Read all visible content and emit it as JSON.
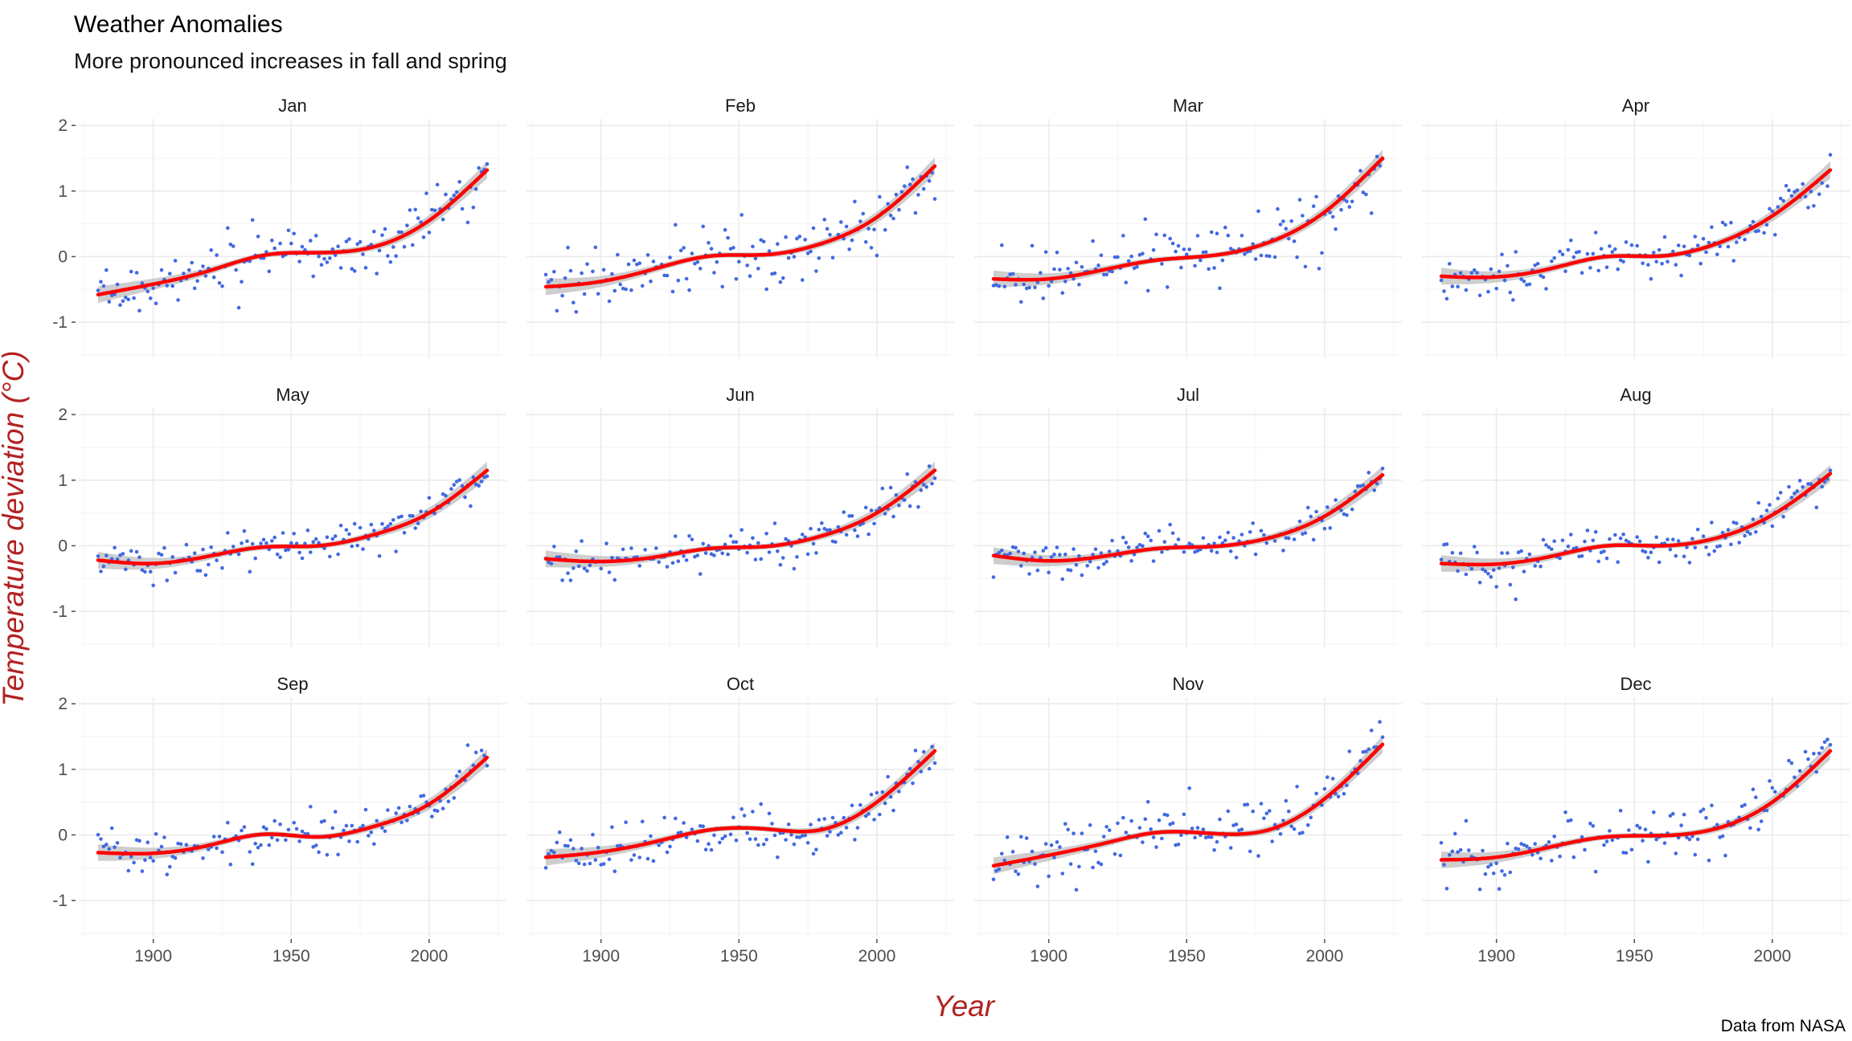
{
  "chart_data": {
    "type": "scatter",
    "title": "Weather Anomalies",
    "subtitle": "More pronounced increases in fall and spring",
    "xlabel": "Year",
    "ylabel": "Temperature deviation (°C)",
    "caption": "Data from NASA",
    "xlim": [
      1873,
      2028
    ],
    "ylim": [
      -1.55,
      2.1
    ],
    "x_ticks": [
      1900,
      1950,
      2000
    ],
    "x_tick_labels": [
      "1900",
      "1950",
      "2000"
    ],
    "y_ticks": [
      -1,
      0,
      1,
      2
    ],
    "y_tick_labels": [
      "-1",
      "0",
      "1",
      "2"
    ],
    "grid": true,
    "legend": "none",
    "layout": "facet grid 3 rows x 4 columns",
    "colors": {
      "points": "#4169e1",
      "smooth": "#ff0000",
      "band": "#bdbdbd",
      "grid": "#ebebeb",
      "axis_title": "#b22222"
    },
    "smooth_x": [
      1880,
      1900,
      1920,
      1940,
      1960,
      1980,
      2000,
      2021
    ],
    "panels": [
      {
        "name": "Jan",
        "smooth_y": [
          -0.58,
          -0.42,
          -0.22,
          0.02,
          0.06,
          0.15,
          0.55,
          1.32
        ],
        "spread": 0.22
      },
      {
        "name": "Feb",
        "smooth_y": [
          -0.46,
          -0.38,
          -0.18,
          0.01,
          0.03,
          0.2,
          0.6,
          1.38
        ],
        "spread": 0.25
      },
      {
        "name": "Mar",
        "smooth_y": [
          -0.34,
          -0.34,
          -0.2,
          -0.05,
          0.02,
          0.22,
          0.68,
          1.5
        ],
        "spread": 0.21
      },
      {
        "name": "Apr",
        "smooth_y": [
          -0.3,
          -0.31,
          -0.18,
          0.0,
          0.01,
          0.2,
          0.62,
          1.32
        ],
        "spread": 0.17
      },
      {
        "name": "May",
        "smooth_y": [
          -0.22,
          -0.27,
          -0.16,
          -0.02,
          0.0,
          0.17,
          0.5,
          1.15
        ],
        "spread": 0.15
      },
      {
        "name": "Jun",
        "smooth_y": [
          -0.2,
          -0.24,
          -0.17,
          -0.04,
          -0.01,
          0.15,
          0.5,
          1.15
        ],
        "spread": 0.14
      },
      {
        "name": "Jul",
        "smooth_y": [
          -0.15,
          -0.23,
          -0.16,
          -0.04,
          -0.01,
          0.12,
          0.45,
          1.08
        ],
        "spread": 0.13
      },
      {
        "name": "Aug",
        "smooth_y": [
          -0.27,
          -0.28,
          -0.16,
          0.0,
          0.0,
          0.12,
          0.47,
          1.1
        ],
        "spread": 0.15
      },
      {
        "name": "Sep",
        "smooth_y": [
          -0.27,
          -0.28,
          -0.16,
          0.01,
          -0.03,
          0.13,
          0.47,
          1.18
        ],
        "spread": 0.16
      },
      {
        "name": "Oct",
        "smooth_y": [
          -0.34,
          -0.26,
          -0.1,
          0.08,
          0.09,
          0.08,
          0.5,
          1.28
        ],
        "spread": 0.17
      },
      {
        "name": "Nov",
        "smooth_y": [
          -0.47,
          -0.31,
          -0.13,
          0.04,
          0.02,
          0.08,
          0.55,
          1.38
        ],
        "spread": 0.2
      },
      {
        "name": "Dec",
        "smooth_y": [
          -0.38,
          -0.34,
          -0.18,
          -0.03,
          -0.01,
          0.1,
          0.5,
          1.28
        ],
        "spread": 0.22
      }
    ]
  }
}
